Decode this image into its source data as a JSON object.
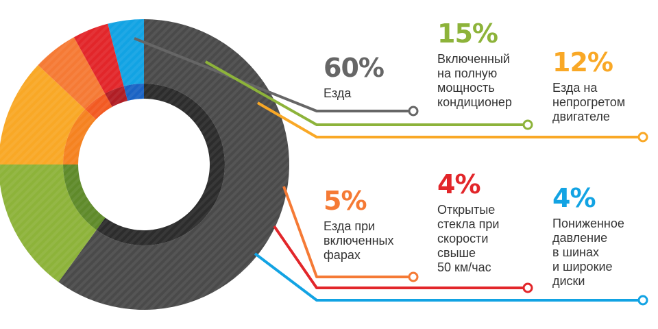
{
  "chart_data": {
    "type": "pie",
    "categories": [
      "Езда",
      "Включенный на полную мощность кондиционер",
      "Езда на непрогретом двигателе",
      "Езда при включенных фарах",
      "Открытые стекла при скорости свыше 50 км/час",
      "Пониженное давление в шинах и широкие диски"
    ],
    "values": [
      60,
      15,
      12,
      5,
      4,
      4
    ],
    "value_labels": [
      "60%",
      "15%",
      "12%",
      "5%",
      "4%",
      "4%"
    ],
    "label_lines": [
      [
        "Езда"
      ],
      [
        "Включенный",
        "на полную",
        "мощность",
        "кондиционер"
      ],
      [
        "Езда на",
        "непрогретом",
        "двигателе"
      ],
      [
        "Езда при",
        "включенных",
        "фарах"
      ],
      [
        "Открытые",
        "стекла при",
        "скорости",
        "свыше",
        "50 км/час"
      ],
      [
        "Пониженное",
        "давление",
        "в шинах",
        "и широкие",
        "диски"
      ]
    ],
    "colors": [
      "#4a4a4a",
      "#8db33a",
      "#f9a826",
      "#f57a35",
      "#e2262a",
      "#12a3e3"
    ],
    "inner_colors": [
      "#2c2c2c",
      "#5f8a2a",
      "#f58220",
      "#f25a22",
      "#b01d24",
      "#1a63c4"
    ],
    "start_angle_deg": 0,
    "donut": true,
    "legend": "none"
  }
}
